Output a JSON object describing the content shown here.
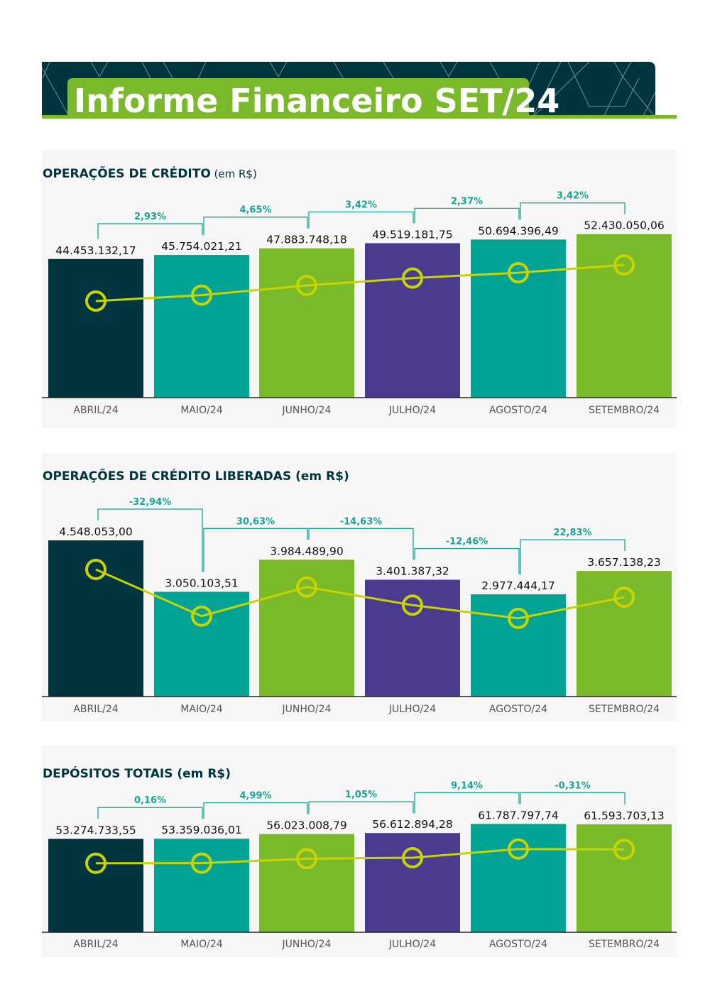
{
  "header": {
    "title": "Informe Financeiro SET/24"
  },
  "colors": {
    "dark": "#00343f",
    "teal": "#00a394",
    "green": "#7ab929",
    "purple": "#4b3b8f",
    "line": "#c8d400",
    "percent": "#17a596",
    "panel": "#f6f6f6"
  },
  "chart_data": [
    {
      "type": "bar",
      "title": "OPERAÇÕES DE CRÉDITO",
      "title_suffix": "(em R$)",
      "categories": [
        "ABRIL/24",
        "MAIO/24",
        "JUNHO/24",
        "JULHO/24",
        "AGOSTO/24",
        "SETEMBRO/24"
      ],
      "values": [
        44453132.17,
        45754021.21,
        47883748.18,
        49519181.75,
        50694396.49,
        52430050.06
      ],
      "value_labels": [
        "44.453.132,17",
        "45.754.021,21",
        "47.883.748,18",
        "49.519.181,75",
        "50.694.396,49",
        "52.430.050,06"
      ],
      "changes": [
        "2,93%",
        "4,65%",
        "3,42%",
        "2,37%",
        "3,42%"
      ],
      "ylim": [
        0,
        59200000
      ],
      "line_ylim": [
        23170000,
        63850000
      ],
      "bar_colors": [
        "dark",
        "teal",
        "green",
        "purple",
        "teal",
        "green"
      ]
    },
    {
      "type": "bar",
      "title": "OPERAÇÕES DE CRÉDITO LIBERADAS (em R$)",
      "title_suffix": "",
      "categories": [
        "ABRIL/24",
        "MAIO/24",
        "JUNHO/24",
        "JULHO/24",
        "AGOSTO/24",
        "SETEMBRO/24"
      ],
      "values": [
        4548053.0,
        3050103.51,
        3984489.9,
        3401387.32,
        2977444.17,
        3657138.23
      ],
      "value_labels": [
        "4.548.053,00",
        "3.050.103,51",
        "3.984.489,90",
        "3.401.387,32",
        "2.977.444,17",
        "3.657.138,23"
      ],
      "changes": [
        "-32,94%",
        "30,63%",
        "-14,63%",
        "-12,46%",
        "22,83%"
      ],
      "ylim": [
        0,
        5810000
      ],
      "line_ylim": [
        470000,
        6870000
      ],
      "bar_colors": [
        "dark",
        "teal",
        "green",
        "purple",
        "teal",
        "green"
      ]
    },
    {
      "type": "bar",
      "title": "DEPÓSITOS TOTAIS (em R$)",
      "title_suffix": "",
      "categories": [
        "ABRIL/24",
        "MAIO/24",
        "JUNHO/24",
        "JULHO/24",
        "AGOSTO/24",
        "SETEMBRO/24"
      ],
      "values": [
        53274733.55,
        53359036.01,
        56023008.79,
        56612894.28,
        61787797.74,
        61593703.13
      ],
      "value_labels": [
        "53.274.733,55",
        "53.359.036,01",
        "56.023.008,79",
        "56.612.894,28",
        "61.787.797,74",
        "61.593.703,13"
      ],
      "changes": [
        "0,16%",
        "4,99%",
        "1,05%",
        "9,14%",
        "-0,31%"
      ],
      "ylim": [
        0,
        82200000
      ],
      "line_ylim": [
        11900000,
        98300000
      ],
      "bar_colors": [
        "dark",
        "teal",
        "green",
        "purple",
        "teal",
        "green"
      ]
    }
  ]
}
